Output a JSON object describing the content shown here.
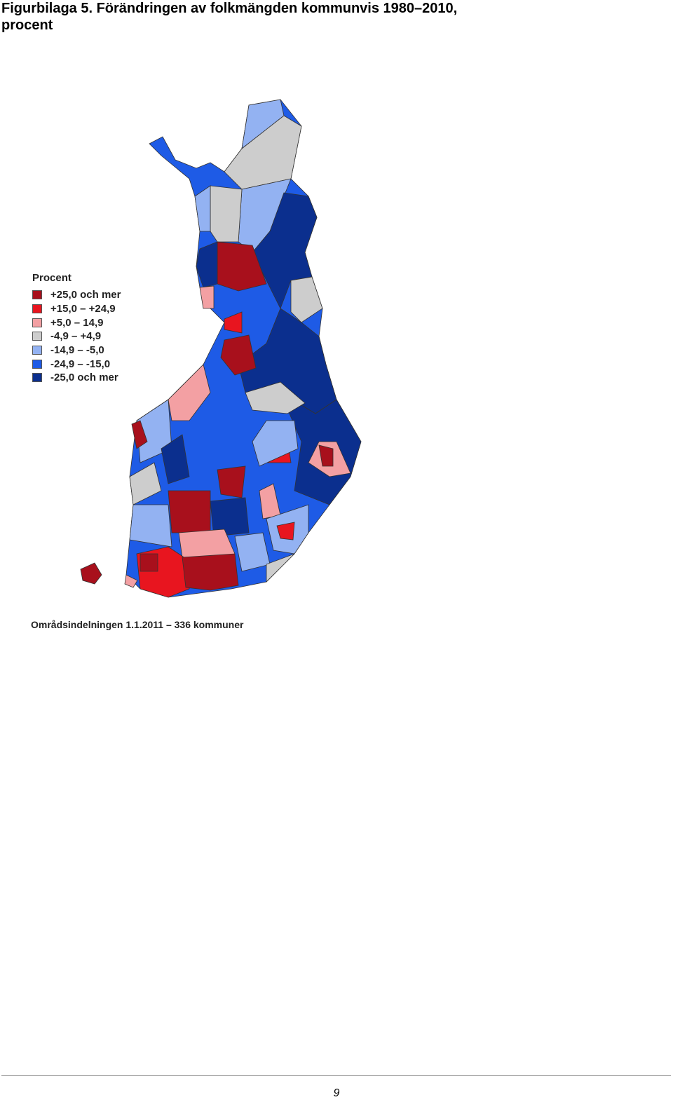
{
  "header": {
    "title": "Figurbilaga 5. Förändringen av folkmängden kommunvis 1980–2010, procent"
  },
  "legend": {
    "title": "Procent",
    "items": [
      {
        "label": "+25,0 och mer",
        "color": "#a8101c"
      },
      {
        "label": "+15,0 – +24,9",
        "color": "#e8151f"
      },
      {
        "label": "+5,0 – 14,9",
        "color": "#f3a0a3"
      },
      {
        "label": "-4,9 – +4,9",
        "color": "#cdcdcd"
      },
      {
        "label": "-14,9 – -5,0",
        "color": "#93b2f2"
      },
      {
        "label": "-24,9 – -15,0",
        "color": "#1e5be6"
      },
      {
        "label": "-25,0 och mer",
        "color": "#0b2f8e"
      }
    ]
  },
  "footnote": "Områdsindelningen 1.1.2011 – 336 kommuner",
  "page_number": "9"
}
